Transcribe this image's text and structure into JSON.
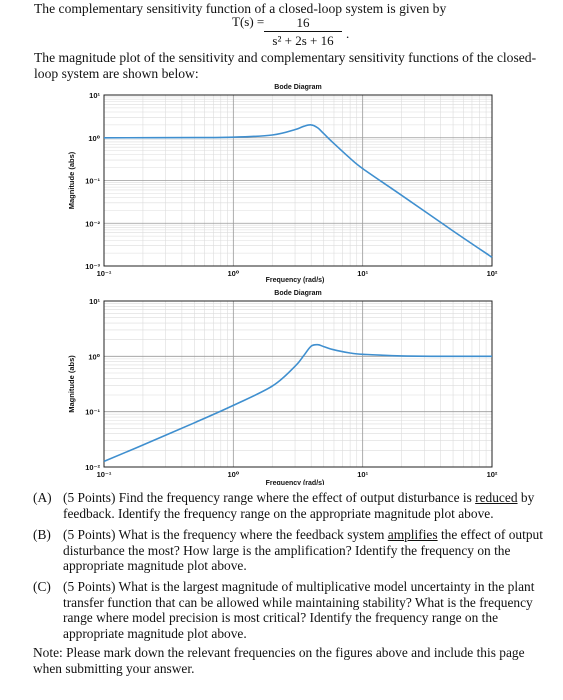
{
  "intro": "The complementary sensitivity function of a closed-loop system is given by",
  "equation": {
    "lhs": "T(s) =",
    "numerator": "16",
    "denominator": "s² + 2s + 16",
    "end": "."
  },
  "paragraph": "The magnitude plot of the sensitivity and complementary sensitivity functions of the closed-loop system are shown below:",
  "chart_data": [
    {
      "type": "line",
      "title": "Bode Diagram",
      "xlabel": "Frequency  (rad/s)",
      "ylabel": "Magnitude (abs)",
      "x_scale": "log",
      "y_scale": "log",
      "xlim": [
        0.1,
        100
      ],
      "ylim": [
        0.001,
        10
      ],
      "x_ticks": [
        "10⁻¹",
        "10⁰",
        "10¹",
        "10²"
      ],
      "y_ticks": [
        "10¹",
        "10⁰",
        "10⁻¹",
        "10⁻²",
        "10⁻³"
      ],
      "grid": true,
      "color": "#3f8fcf",
      "x": [
        0.1,
        0.5,
        1,
        2,
        3,
        3.5,
        4,
        4.5,
        5,
        6,
        8,
        10,
        20,
        50,
        100
      ],
      "y": [
        1.0,
        1.01,
        1.03,
        1.16,
        1.55,
        1.85,
        2.0,
        1.7,
        1.25,
        0.73,
        0.33,
        0.19,
        0.045,
        0.0066,
        0.0016
      ]
    },
    {
      "type": "line",
      "title": "Bode Diagram",
      "xlabel": "Frequency  (rad/s)",
      "ylabel": "Magnitude (abs)",
      "x_scale": "log",
      "y_scale": "log",
      "xlim": [
        0.1,
        100
      ],
      "ylim": [
        0.01,
        10
      ],
      "x_ticks": [
        "10⁻¹",
        "10⁰",
        "10¹",
        "10²"
      ],
      "y_ticks": [
        "10¹",
        "10⁰",
        "10⁻¹",
        "10⁻²"
      ],
      "grid": true,
      "color": "#3f8fcf",
      "x": [
        0.1,
        0.2,
        0.5,
        1,
        2,
        3,
        3.5,
        4,
        4.5,
        5,
        6,
        8,
        10,
        20,
        50,
        100
      ],
      "y": [
        0.0126,
        0.025,
        0.063,
        0.13,
        0.29,
        0.66,
        1.03,
        1.53,
        1.62,
        1.5,
        1.31,
        1.15,
        1.09,
        1.02,
        1.0,
        1.0
      ]
    }
  ],
  "questions": [
    {
      "label": "(A)",
      "pre": "(5 Points) Find the frequency range where the effect of output disturbance is ",
      "underline": "reduced",
      "post": " by feedback.  Identify the frequency range on the appropriate magnitude plot above."
    },
    {
      "label": "(B)",
      "pre": "(5 Points) What is the frequency where the feedback system ",
      "underline": "amplifies",
      "post": " the effect of output disturbance the most? How large is the amplification? Identify the frequency on the appropriate magnitude plot above."
    },
    {
      "label": "(C)",
      "pre": "(5 Points) What is the largest magnitude of multiplicative model uncertainty in the plant transfer function that can be allowed while maintaining stability? What is the frequency range where model precision is most critical? Identify the frequency range on the appropriate magnitude plot above.",
      "underline": "",
      "post": ""
    }
  ],
  "note": "Note:  Please mark down the relevant frequencies on the figures above and include this page when submitting your answer."
}
